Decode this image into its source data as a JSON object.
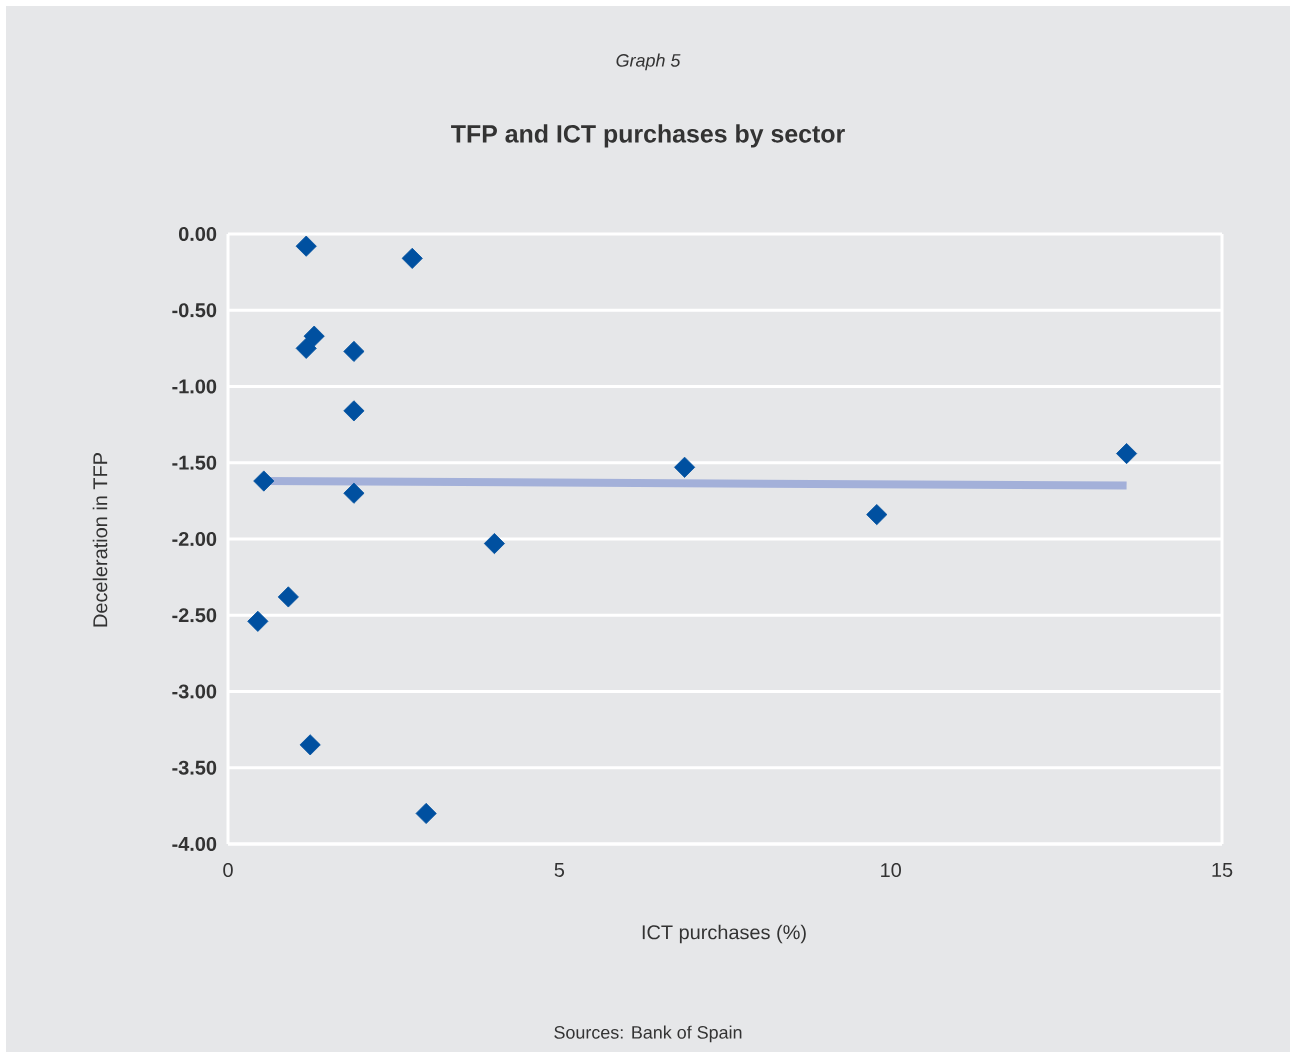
{
  "chart_data": {
    "type": "scatter",
    "subtitle": "Graph 5",
    "title": "TFP and ICT purchases by sector",
    "xlabel": "ICT purchases (%)",
    "ylabel": "Deceleration in TFP",
    "annotations": [
      "Sources: Bank of Spain"
    ],
    "xlim": [
      0,
      15
    ],
    "xticks": [
      0,
      5,
      10,
      15
    ],
    "ylim": [
      -4,
      0
    ],
    "yticks": [
      {
        "value": 0,
        "label": "0.00"
      },
      {
        "value": -0.5,
        "label": "-0.50"
      },
      {
        "value": -1,
        "label": "-1.00"
      },
      {
        "value": -1.5,
        "label": "-1.50"
      },
      {
        "value": -2,
        "label": "-2.00"
      },
      {
        "value": -2.5,
        "label": "-2.50"
      },
      {
        "value": -3,
        "label": "-3.00"
      },
      {
        "value": -3.5,
        "label": "-3.50"
      },
      {
        "value": -4,
        "label": "-4.00"
      }
    ],
    "grid": "y",
    "marker": "diamond",
    "series": [
      {
        "color": "#0050a0",
        "x": [
          1.18,
          2.78,
          1.3,
          1.18,
          1.9,
          1.9,
          0.54,
          1.9,
          4.02,
          0.91,
          0.45,
          1.24,
          2.99,
          6.89,
          9.79,
          13.56
        ],
        "values": [
          -0.08,
          -0.16,
          -0.67,
          -0.75,
          -0.77,
          -1.16,
          -1.62,
          -1.7,
          -2.03,
          -2.38,
          -2.54,
          -3.35,
          -3.8,
          -1.53,
          -1.84,
          -1.44
        ]
      },
      {
        "type": "line",
        "marker": "none",
        "line_style": "solid",
        "color": "#a3b0d9",
        "x": [
          0.54,
          13.56
        ],
        "values": [
          -1.62,
          -1.65
        ]
      }
    ]
  }
}
